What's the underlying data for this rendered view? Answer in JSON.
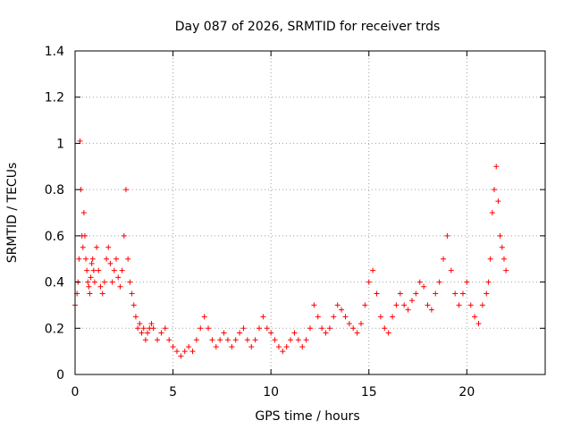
{
  "chart_data": {
    "type": "scatter",
    "title": "Day 087 of 2026, SRMTID for receiver trds",
    "xlabel": "GPS time / hours",
    "ylabel": "SRMTID / TECUs",
    "xlim": [
      0,
      24
    ],
    "ylim": [
      0,
      1.4
    ],
    "xticks": [
      0,
      5,
      10,
      15,
      20
    ],
    "yticks": [
      0,
      0.2,
      0.4,
      0.6,
      0.8,
      1,
      1.2,
      1.4
    ],
    "xtick_labels": [
      "0",
      "5",
      "10",
      "15",
      "20"
    ],
    "ytick_labels": [
      "0",
      "0.2",
      "0.4",
      "0.6",
      "0.8",
      "1",
      "1.2",
      "1.4"
    ],
    "grid": true,
    "marker": "+",
    "color": "#ff0000",
    "series": [
      {
        "name": "SRMTID",
        "x": [
          0.0,
          0.1,
          0.15,
          0.2,
          0.25,
          0.3,
          0.35,
          0.4,
          0.45,
          0.5,
          0.55,
          0.6,
          0.65,
          0.7,
          0.75,
          0.8,
          0.85,
          0.9,
          0.95,
          1.0,
          1.1,
          1.2,
          1.3,
          1.4,
          1.5,
          1.6,
          1.7,
          1.8,
          1.9,
          2.0,
          2.1,
          2.2,
          2.3,
          2.4,
          2.5,
          2.6,
          2.7,
          2.8,
          2.9,
          3.0,
          3.1,
          3.2,
          3.3,
          3.4,
          3.5,
          3.6,
          3.7,
          3.8,
          3.9,
          4.0,
          4.2,
          4.4,
          4.6,
          4.8,
          5.0,
          5.2,
          5.4,
          5.6,
          5.8,
          6.0,
          6.2,
          6.4,
          6.6,
          6.8,
          7.0,
          7.2,
          7.4,
          7.6,
          7.8,
          8.0,
          8.2,
          8.4,
          8.6,
          8.8,
          9.0,
          9.2,
          9.4,
          9.6,
          9.8,
          10.0,
          10.2,
          10.4,
          10.6,
          10.8,
          11.0,
          11.2,
          11.4,
          11.6,
          11.8,
          12.0,
          12.2,
          12.4,
          12.6,
          12.8,
          13.0,
          13.2,
          13.4,
          13.6,
          13.8,
          14.0,
          14.2,
          14.4,
          14.6,
          14.8,
          15.0,
          15.2,
          15.4,
          15.6,
          15.8,
          16.0,
          16.2,
          16.4,
          16.6,
          16.8,
          17.0,
          17.2,
          17.4,
          17.6,
          17.8,
          18.0,
          18.2,
          18.4,
          18.6,
          18.8,
          19.0,
          19.2,
          19.4,
          19.6,
          19.8,
          20.0,
          20.2,
          20.4,
          20.6,
          20.8,
          21.0,
          21.1,
          21.2,
          21.3,
          21.4,
          21.5,
          21.6,
          21.7,
          21.8,
          21.9,
          22.0
        ],
        "y": [
          0.3,
          0.35,
          0.4,
          0.5,
          1.01,
          0.8,
          0.6,
          0.55,
          0.7,
          0.6,
          0.5,
          0.45,
          0.4,
          0.38,
          0.35,
          0.42,
          0.48,
          0.5,
          0.45,
          0.4,
          0.55,
          0.45,
          0.38,
          0.35,
          0.4,
          0.5,
          0.55,
          0.48,
          0.4,
          0.45,
          0.5,
          0.42,
          0.38,
          0.45,
          0.6,
          0.8,
          0.5,
          0.4,
          0.35,
          0.3,
          0.25,
          0.2,
          0.22,
          0.18,
          0.2,
          0.15,
          0.18,
          0.2,
          0.22,
          0.2,
          0.15,
          0.18,
          0.2,
          0.15,
          0.12,
          0.1,
          0.08,
          0.1,
          0.12,
          0.1,
          0.15,
          0.2,
          0.25,
          0.2,
          0.15,
          0.12,
          0.15,
          0.18,
          0.15,
          0.12,
          0.15,
          0.18,
          0.2,
          0.15,
          0.12,
          0.15,
          0.2,
          0.25,
          0.2,
          0.18,
          0.15,
          0.12,
          0.1,
          0.12,
          0.15,
          0.18,
          0.15,
          0.12,
          0.15,
          0.2,
          0.3,
          0.25,
          0.2,
          0.18,
          0.2,
          0.25,
          0.3,
          0.28,
          0.25,
          0.22,
          0.2,
          0.18,
          0.22,
          0.3,
          0.4,
          0.45,
          0.35,
          0.25,
          0.2,
          0.18,
          0.25,
          0.3,
          0.35,
          0.3,
          0.28,
          0.32,
          0.35,
          0.4,
          0.38,
          0.3,
          0.28,
          0.35,
          0.4,
          0.5,
          0.6,
          0.45,
          0.35,
          0.3,
          0.35,
          0.4,
          0.3,
          0.25,
          0.22,
          0.3,
          0.35,
          0.4,
          0.5,
          0.7,
          0.8,
          0.9,
          0.75,
          0.6,
          0.55,
          0.5,
          0.45
        ]
      }
    ]
  }
}
